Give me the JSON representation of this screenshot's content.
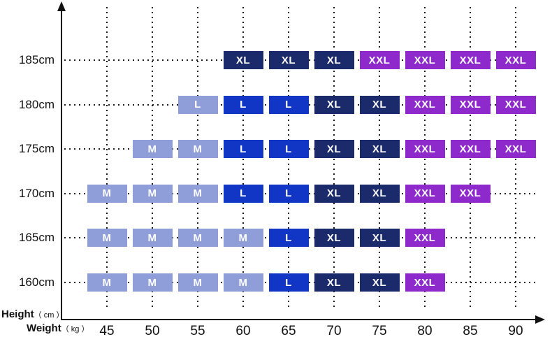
{
  "axes": {
    "y_label": {
      "name": "Height",
      "unit": "（ cm ）"
    },
    "x_label": {
      "name": "Weight",
      "unit": "（ kg ）"
    }
  },
  "chart_data": {
    "type": "heatmap",
    "title": "",
    "xlabel": "Weight ( kg )",
    "ylabel": "Height ( cm )",
    "x": [
      45,
      50,
      55,
      60,
      65,
      70,
      75,
      80,
      85,
      90
    ],
    "y_categories": [
      "185cm",
      "180cm",
      "175cm",
      "170cm",
      "165cm",
      "160cm"
    ],
    "grid": "dotted",
    "legend": "none",
    "colors": {
      "light": "#8F9ED8",
      "blue": "#1136C6",
      "navy": "#1B2A6B",
      "purple": "#8E2ACB",
      "axis": "#111111",
      "text_on_cell": "#ffffff"
    },
    "rows": [
      {
        "height": "185cm",
        "cells": [
          {
            "weight": 60,
            "size": "XL",
            "color": "navy"
          },
          {
            "weight": 65,
            "size": "XL",
            "color": "navy"
          },
          {
            "weight": 70,
            "size": "XL",
            "color": "navy"
          },
          {
            "weight": 75,
            "size": "XXL",
            "color": "purple"
          },
          {
            "weight": 80,
            "size": "XXL",
            "color": "purple"
          },
          {
            "weight": 85,
            "size": "XXL",
            "color": "purple"
          },
          {
            "weight": 90,
            "size": "XXL",
            "color": "purple"
          }
        ]
      },
      {
        "height": "180cm",
        "cells": [
          {
            "weight": 55,
            "size": "L",
            "color": "light"
          },
          {
            "weight": 60,
            "size": "L",
            "color": "blue"
          },
          {
            "weight": 65,
            "size": "L",
            "color": "blue"
          },
          {
            "weight": 70,
            "size": "XL",
            "color": "navy"
          },
          {
            "weight": 75,
            "size": "XL",
            "color": "navy"
          },
          {
            "weight": 80,
            "size": "XXL",
            "color": "purple"
          },
          {
            "weight": 85,
            "size": "XXL",
            "color": "purple"
          },
          {
            "weight": 90,
            "size": "XXL",
            "color": "purple"
          }
        ]
      },
      {
        "height": "175cm",
        "cells": [
          {
            "weight": 50,
            "size": "M",
            "color": "light"
          },
          {
            "weight": 55,
            "size": "M",
            "color": "light"
          },
          {
            "weight": 60,
            "size": "L",
            "color": "blue"
          },
          {
            "weight": 65,
            "size": "L",
            "color": "blue"
          },
          {
            "weight": 70,
            "size": "XL",
            "color": "navy"
          },
          {
            "weight": 75,
            "size": "XL",
            "color": "navy"
          },
          {
            "weight": 80,
            "size": "XXL",
            "color": "purple"
          },
          {
            "weight": 85,
            "size": "XXL",
            "color": "purple"
          },
          {
            "weight": 90,
            "size": "XXL",
            "color": "purple"
          }
        ]
      },
      {
        "height": "170cm",
        "cells": [
          {
            "weight": 45,
            "size": "M",
            "color": "light"
          },
          {
            "weight": 50,
            "size": "M",
            "color": "light"
          },
          {
            "weight": 55,
            "size": "M",
            "color": "light"
          },
          {
            "weight": 60,
            "size": "L",
            "color": "blue"
          },
          {
            "weight": 65,
            "size": "L",
            "color": "blue"
          },
          {
            "weight": 70,
            "size": "XL",
            "color": "navy"
          },
          {
            "weight": 75,
            "size": "XL",
            "color": "navy"
          },
          {
            "weight": 80,
            "size": "XXL",
            "color": "purple"
          },
          {
            "weight": 85,
            "size": "XXL",
            "color": "purple"
          }
        ]
      },
      {
        "height": "165cm",
        "cells": [
          {
            "weight": 45,
            "size": "M",
            "color": "light"
          },
          {
            "weight": 50,
            "size": "M",
            "color": "light"
          },
          {
            "weight": 55,
            "size": "M",
            "color": "light"
          },
          {
            "weight": 60,
            "size": "M",
            "color": "light"
          },
          {
            "weight": 65,
            "size": "L",
            "color": "blue"
          },
          {
            "weight": 70,
            "size": "XL",
            "color": "navy"
          },
          {
            "weight": 75,
            "size": "XL",
            "color": "navy"
          },
          {
            "weight": 80,
            "size": "XXL",
            "color": "purple"
          }
        ]
      },
      {
        "height": "160cm",
        "cells": [
          {
            "weight": 45,
            "size": "M",
            "color": "light"
          },
          {
            "weight": 50,
            "size": "M",
            "color": "light"
          },
          {
            "weight": 55,
            "size": "M",
            "color": "light"
          },
          {
            "weight": 60,
            "size": "M",
            "color": "light"
          },
          {
            "weight": 65,
            "size": "L",
            "color": "blue"
          },
          {
            "weight": 70,
            "size": "XL",
            "color": "navy"
          },
          {
            "weight": 75,
            "size": "XL",
            "color": "navy"
          },
          {
            "weight": 80,
            "size": "XXL",
            "color": "purple"
          }
        ]
      }
    ]
  }
}
